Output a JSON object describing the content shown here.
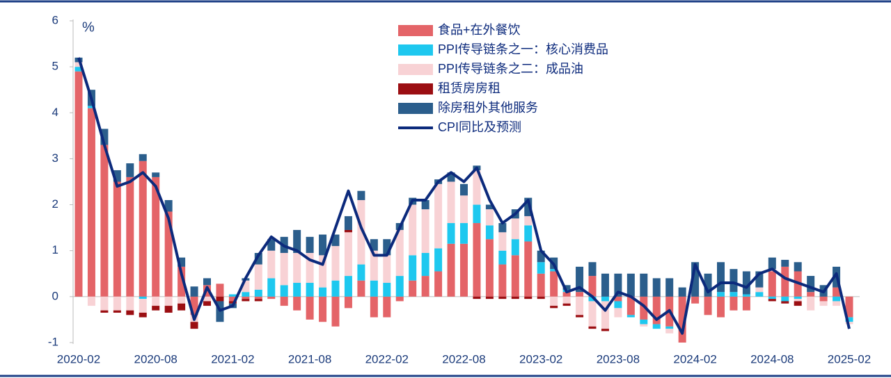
{
  "chart_data": {
    "type": "bar",
    "y_label": "%",
    "categories": [
      "2020-02",
      null,
      null,
      null,
      null,
      null,
      "2020-08",
      null,
      null,
      null,
      null,
      null,
      "2021-02",
      null,
      null,
      null,
      null,
      null,
      "2021-08",
      null,
      null,
      null,
      null,
      null,
      "2022-02",
      null,
      null,
      null,
      null,
      null,
      "2022-08",
      null,
      null,
      null,
      null,
      null,
      "2023-02",
      null,
      null,
      null,
      null,
      null,
      "2023-08",
      null,
      null,
      null,
      null,
      null,
      "2024-02",
      null,
      null,
      null,
      null,
      null,
      "2024-08",
      null,
      null,
      null,
      null,
      null,
      "2025-02"
    ],
    "ylim": [
      -1,
      6
    ],
    "yticks": [
      -1,
      0,
      1,
      2,
      3,
      4,
      5,
      6
    ],
    "series": [
      {
        "name": "食品+在外餐饮",
        "color": "#e46468",
        "values": [
          4.9,
          4.1,
          3.3,
          2.5,
          2.6,
          2.95,
          2.6,
          1.85,
          0.65,
          -0.4,
          0.25,
          0.28,
          -0.1,
          -0.05,
          -0.05,
          -0.05,
          -0.2,
          -0.3,
          -0.5,
          -0.55,
          -0.65,
          -0.25,
          0.35,
          -0.45,
          -0.45,
          -0.1,
          0.35,
          0.45,
          0.55,
          1.15,
          1.15,
          1.6,
          1.25,
          0.7,
          0.9,
          1.2,
          0.5,
          0.55,
          0.1,
          0.1,
          0.45,
          0,
          -0.1,
          -0.4,
          -0.5,
          -0.6,
          -0.65,
          -1,
          -0.15,
          -0.4,
          -0.45,
          -0.3,
          -0.3,
          0,
          0.55,
          0.65,
          0.55,
          0.1,
          -0.1,
          0.2,
          -0.45
        ]
      },
      {
        "name": "PPI传导链条之一：核心消费品",
        "color": "#1ec8ef",
        "values": [
          0.1,
          0.05,
          0,
          0,
          0,
          -0.05,
          0,
          0,
          0,
          0,
          0,
          0,
          0.05,
          0.1,
          0.15,
          0.4,
          0.25,
          0.3,
          0.3,
          0.2,
          0.35,
          0.45,
          0.35,
          0.35,
          0.3,
          0.45,
          0.55,
          0.5,
          0.5,
          0.45,
          0.45,
          0.4,
          0.3,
          0.3,
          0.35,
          0.35,
          0.25,
          0.05,
          0.05,
          0,
          -0.1,
          -0.1,
          -0.15,
          -0.05,
          -0.1,
          -0.1,
          -0.05,
          0,
          0,
          0,
          0.1,
          0.1,
          0.05,
          0.1,
          -0.05,
          -0.1,
          -0.05,
          0,
          0,
          -0.1,
          -0.1
        ]
      },
      {
        "name": "PPI传导链条之二：成品油",
        "color": "#f8d2d5",
        "values": [
          0.1,
          -0.2,
          -0.3,
          -0.3,
          -0.3,
          -0.3,
          -0.2,
          -0.2,
          -0.15,
          -0.15,
          -0.1,
          0,
          0,
          0.25,
          0.55,
          0.6,
          0.7,
          0.65,
          0.65,
          0.7,
          0.75,
          0.95,
          1.4,
          0.65,
          0.6,
          1,
          1.1,
          0.95,
          1.4,
          0.9,
          0.6,
          0.75,
          0.35,
          0.4,
          0.45,
          0.2,
          0,
          -0.2,
          -0.15,
          -0.4,
          -0.55,
          -0.6,
          -0.2,
          0,
          -0.05,
          0,
          -0.1,
          0,
          0,
          0,
          0,
          0,
          0,
          0.1,
          0.05,
          0,
          -0.05,
          -0.3,
          -0.1,
          -0.1,
          -0.05
        ]
      },
      {
        "name": "租赁房房租",
        "color": "#9b0e12",
        "values": [
          0,
          0,
          -0.05,
          -0.05,
          -0.1,
          -0.1,
          -0.1,
          -0.15,
          -0.15,
          -0.15,
          -0.1,
          -0.1,
          -0.05,
          -0.05,
          -0.05,
          0,
          0,
          0,
          0,
          0,
          0,
          0.05,
          0,
          0,
          0,
          0,
          0,
          0,
          0,
          0,
          0,
          -0.05,
          -0.05,
          -0.05,
          -0.05,
          -0.05,
          -0.05,
          -0.05,
          -0.05,
          -0.05,
          -0.05,
          -0.05,
          0,
          0,
          0,
          0,
          0,
          0,
          0,
          0,
          0,
          0,
          0,
          0,
          -0.05,
          -0.05,
          -0.1,
          0,
          0,
          0,
          0
        ]
      },
      {
        "name": "除房租外其他服务",
        "color": "#2b5e8c",
        "values": [
          0.1,
          0.35,
          0.35,
          0.25,
          0.3,
          0.15,
          0.1,
          0.25,
          0.2,
          0.22,
          0.15,
          -0.45,
          -0.1,
          0.05,
          0.25,
          0.25,
          0.35,
          0.5,
          0.35,
          0.45,
          0.25,
          0.3,
          0.2,
          0.25,
          0.35,
          0.15,
          0.15,
          0.2,
          0.1,
          0.2,
          0.25,
          0.1,
          0.1,
          0.2,
          0.2,
          0.4,
          0.25,
          0.25,
          0.1,
          0.55,
          0.3,
          0.5,
          0.5,
          0.5,
          0.5,
          0.4,
          0.4,
          0.2,
          0.75,
          0.5,
          0.65,
          0.5,
          0.5,
          0.35,
          0.25,
          0.15,
          0.2,
          0.35,
          0.25,
          0.45,
          0
        ]
      }
    ],
    "line": {
      "name": "CPI同比及预测",
      "color": "#0c2a7c",
      "values": [
        5.2,
        4.3,
        3.3,
        2.4,
        2.5,
        2.7,
        2.4,
        1.7,
        0.5,
        -0.5,
        0.2,
        -0.3,
        -0.2,
        0.4,
        0.9,
        1.3,
        1.1,
        1,
        0.8,
        0.7,
        1.5,
        2.3,
        1.5,
        0.9,
        0.9,
        1.5,
        2.1,
        2.1,
        2.5,
        2.7,
        2.5,
        2.8,
        2.1,
        1.6,
        1.8,
        2.1,
        1,
        0.7,
        0.1,
        0.2,
        0,
        -0.3,
        0.1,
        0,
        -0.2,
        -0.5,
        -0.3,
        -0.8,
        0.7,
        0.1,
        0.3,
        0.3,
        0.2,
        0.5,
        0.6,
        0.4,
        0.3,
        0.2,
        0.1,
        0.5,
        -0.7
      ]
    }
  }
}
